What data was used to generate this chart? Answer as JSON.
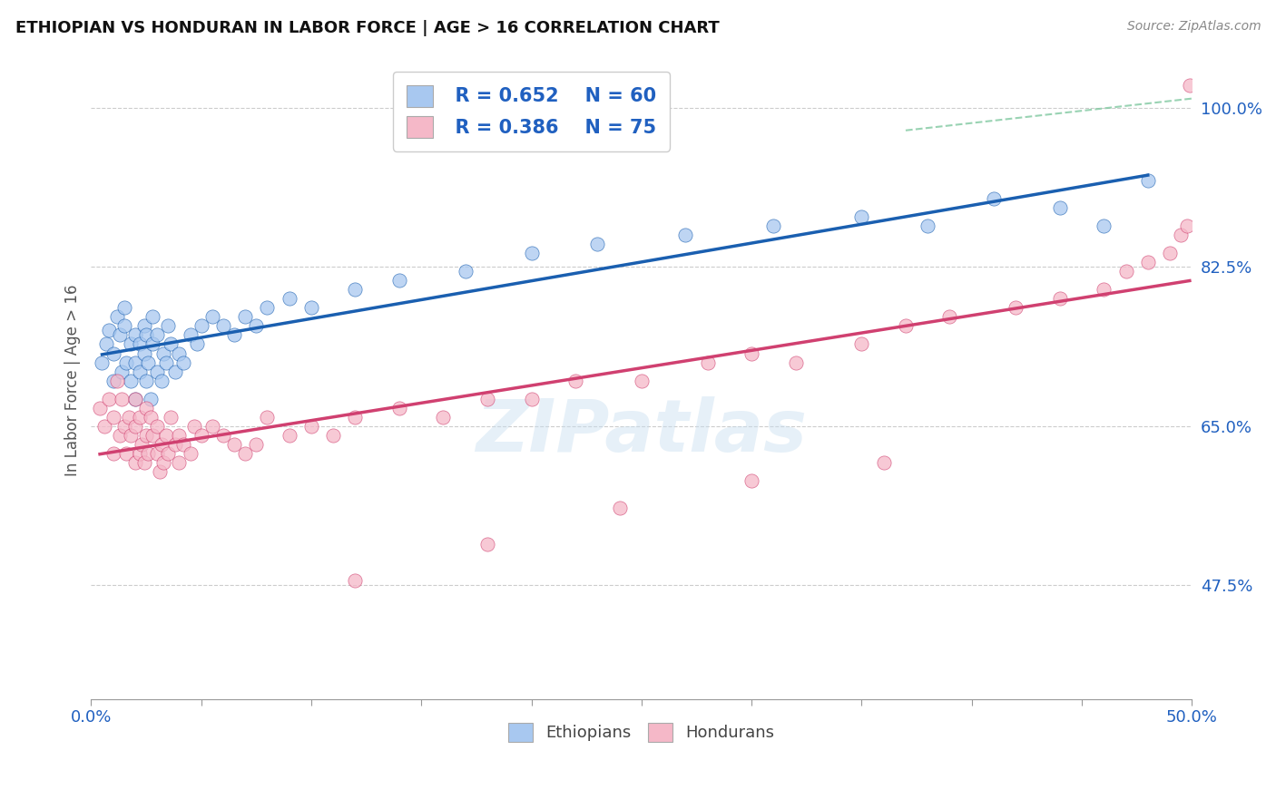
{
  "title": "ETHIOPIAN VS HONDURAN IN LABOR FORCE | AGE > 16 CORRELATION CHART",
  "source": "Source: ZipAtlas.com",
  "ylabel": "In Labor Force | Age > 16",
  "xlim": [
    0.0,
    0.5
  ],
  "ylim": [
    0.35,
    1.05
  ],
  "yticks": [
    0.475,
    0.65,
    0.825,
    1.0
  ],
  "ytick_labels": [
    "47.5%",
    "65.0%",
    "82.5%",
    "100.0%"
  ],
  "xticks": [
    0.0,
    0.05,
    0.1,
    0.15,
    0.2,
    0.25,
    0.3,
    0.35,
    0.4,
    0.45,
    0.5
  ],
  "xtick_labels": [
    "0.0%",
    "",
    "",
    "",
    "",
    "",
    "",
    "",
    "",
    "",
    "50.0%"
  ],
  "blue_color": "#a8c8f0",
  "pink_color": "#f5b8c8",
  "blue_line_color": "#1a5fb0",
  "pink_line_color": "#d04070",
  "dashed_line_color": "#80c8a0",
  "legend_r_blue": "R = 0.652",
  "legend_n_blue": "N = 60",
  "legend_r_pink": "R = 0.386",
  "legend_n_pink": "N = 75",
  "legend_label_blue": "Ethiopians",
  "legend_label_pink": "Hondurans",
  "text_color": "#2060c0",
  "blue_scatter_x": [
    0.005,
    0.007,
    0.008,
    0.01,
    0.01,
    0.012,
    0.013,
    0.014,
    0.015,
    0.015,
    0.016,
    0.018,
    0.018,
    0.02,
    0.02,
    0.02,
    0.022,
    0.022,
    0.024,
    0.024,
    0.025,
    0.025,
    0.026,
    0.027,
    0.028,
    0.028,
    0.03,
    0.03,
    0.032,
    0.033,
    0.034,
    0.035,
    0.036,
    0.038,
    0.04,
    0.042,
    0.045,
    0.048,
    0.05,
    0.055,
    0.06,
    0.065,
    0.07,
    0.075,
    0.08,
    0.09,
    0.1,
    0.12,
    0.14,
    0.17,
    0.2,
    0.23,
    0.27,
    0.31,
    0.35,
    0.38,
    0.41,
    0.44,
    0.46,
    0.48
  ],
  "blue_scatter_y": [
    0.72,
    0.74,
    0.755,
    0.7,
    0.73,
    0.77,
    0.75,
    0.71,
    0.76,
    0.78,
    0.72,
    0.7,
    0.74,
    0.68,
    0.72,
    0.75,
    0.71,
    0.74,
    0.73,
    0.76,
    0.7,
    0.75,
    0.72,
    0.68,
    0.74,
    0.77,
    0.71,
    0.75,
    0.7,
    0.73,
    0.72,
    0.76,
    0.74,
    0.71,
    0.73,
    0.72,
    0.75,
    0.74,
    0.76,
    0.77,
    0.76,
    0.75,
    0.77,
    0.76,
    0.78,
    0.79,
    0.78,
    0.8,
    0.81,
    0.82,
    0.84,
    0.85,
    0.86,
    0.87,
    0.88,
    0.87,
    0.9,
    0.89,
    0.87,
    0.92
  ],
  "pink_scatter_x": [
    0.004,
    0.006,
    0.008,
    0.01,
    0.01,
    0.012,
    0.013,
    0.014,
    0.015,
    0.016,
    0.017,
    0.018,
    0.02,
    0.02,
    0.02,
    0.022,
    0.022,
    0.023,
    0.024,
    0.025,
    0.025,
    0.026,
    0.027,
    0.028,
    0.03,
    0.03,
    0.031,
    0.032,
    0.033,
    0.034,
    0.035,
    0.036,
    0.038,
    0.04,
    0.04,
    0.042,
    0.045,
    0.047,
    0.05,
    0.055,
    0.06,
    0.065,
    0.07,
    0.075,
    0.08,
    0.09,
    0.1,
    0.11,
    0.12,
    0.14,
    0.16,
    0.18,
    0.2,
    0.22,
    0.25,
    0.28,
    0.3,
    0.32,
    0.35,
    0.37,
    0.39,
    0.42,
    0.44,
    0.46,
    0.47,
    0.48,
    0.49,
    0.495,
    0.498,
    0.499,
    0.12,
    0.18,
    0.24,
    0.3,
    0.36
  ],
  "pink_scatter_y": [
    0.67,
    0.65,
    0.68,
    0.62,
    0.66,
    0.7,
    0.64,
    0.68,
    0.65,
    0.62,
    0.66,
    0.64,
    0.61,
    0.65,
    0.68,
    0.62,
    0.66,
    0.63,
    0.61,
    0.64,
    0.67,
    0.62,
    0.66,
    0.64,
    0.62,
    0.65,
    0.6,
    0.63,
    0.61,
    0.64,
    0.62,
    0.66,
    0.63,
    0.64,
    0.61,
    0.63,
    0.62,
    0.65,
    0.64,
    0.65,
    0.64,
    0.63,
    0.62,
    0.63,
    0.66,
    0.64,
    0.65,
    0.64,
    0.66,
    0.67,
    0.66,
    0.68,
    0.68,
    0.7,
    0.7,
    0.72,
    0.73,
    0.72,
    0.74,
    0.76,
    0.77,
    0.78,
    0.79,
    0.8,
    0.82,
    0.83,
    0.84,
    0.86,
    0.87,
    1.025,
    0.48,
    0.52,
    0.56,
    0.59,
    0.61
  ]
}
